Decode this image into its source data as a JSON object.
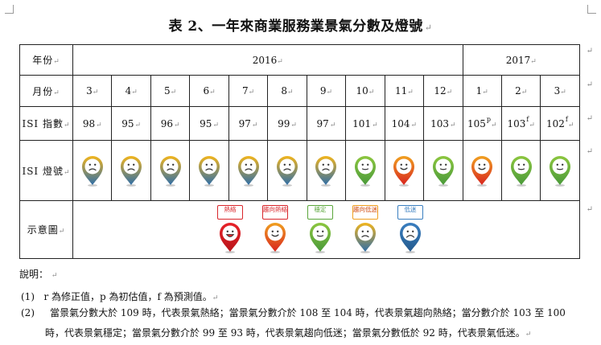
{
  "title": "表 2、一年來商業服務業景氣分數及燈號",
  "table": {
    "row_labels": {
      "year": "年份",
      "month": "月份",
      "isi_score": "ISI 指數",
      "isi_light": "ISI 燈號",
      "legend": "示意圖"
    },
    "years": [
      "2016",
      "2017"
    ],
    "months": [
      "3",
      "4",
      "5",
      "6",
      "7",
      "8",
      "9",
      "10",
      "11",
      "12",
      "1",
      "2",
      "3"
    ],
    "scores": [
      {
        "value": "98",
        "flag": ""
      },
      {
        "value": "95",
        "flag": ""
      },
      {
        "value": "96",
        "flag": ""
      },
      {
        "value": "95",
        "flag": ""
      },
      {
        "value": "97",
        "flag": ""
      },
      {
        "value": "99",
        "flag": ""
      },
      {
        "value": "97",
        "flag": ""
      },
      {
        "value": "101",
        "flag": ""
      },
      {
        "value": "104",
        "flag": ""
      },
      {
        "value": "103",
        "flag": ""
      },
      {
        "value": "105",
        "flag": "p"
      },
      {
        "value": "103",
        "flag": "f"
      },
      {
        "value": "102",
        "flag": "f"
      }
    ],
    "lights": [
      "trend-down",
      "trend-down",
      "trend-down",
      "trend-down",
      "trend-down",
      "trend-down",
      "trend-down",
      "stable",
      "trend-hot",
      "stable",
      "trend-hot",
      "stable",
      "stable"
    ]
  },
  "light_types": {
    "hot": {
      "label": "熱絡",
      "top": "#e8232a",
      "bottom": "#b8151a",
      "face": "happy-face-icon",
      "tag_color": "#d9262b"
    },
    "trend-hot": {
      "label": "趨向熱絡",
      "top": "#f0a020",
      "bottom": "#d8251f",
      "face": "smile-face-icon",
      "tag_color": "#d9262b"
    },
    "stable": {
      "label": "穩定",
      "top": "#8cc63f",
      "bottom": "#4a9a3a",
      "face": "neutral-face-icon",
      "tag_color": "#5aa63a"
    },
    "trend-down": {
      "label": "趨向低迷",
      "top": "#f2b51c",
      "bottom": "#2f6ea8",
      "face": "frown-face-icon",
      "tag_color": "#f0a020"
    },
    "down": {
      "label": "低迷",
      "top": "#3a7fc0",
      "bottom": "#245a8e",
      "face": "sad-face-icon",
      "tag_color": "#3a7fc0"
    }
  },
  "legend_order": [
    "hot",
    "trend-hot",
    "stable",
    "trend-down",
    "down"
  ],
  "notes": {
    "heading": "說明：",
    "item1_num": "(1)",
    "item1": "r 為修正值，p 為初估值，f 為預測值。",
    "item2_num": "(2)",
    "item2_line1": "當景氣分數大於 109 時，代表景氣熱絡；當景氣分數介於 108 至 104 時，代表景氣趨向熱絡；當分數介於 103 至 100",
    "item2_line2": "時，代表景氣穩定；當景氣分數介於 99 至 93 時，代表景氣趨向低迷；當景氣分數低於 92 時，代表景氣低迷。"
  }
}
